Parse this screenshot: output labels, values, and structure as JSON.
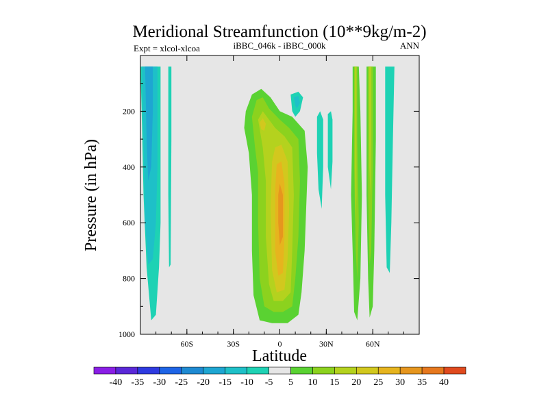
{
  "chart_data": {
    "type": "filled-contour",
    "title": "Meridional Streamfunction (10**9kg/m-2)",
    "subtitle_left": "Expt = xlcol-xlcoa",
    "subtitle_center": "iBBC_046k - iBBC_000k",
    "subtitle_right": "ANN",
    "xlabel": "Latitude",
    "ylabel": "Pressure (in hPa)",
    "xlim": [
      -90,
      90
    ],
    "ylim": [
      0,
      1000
    ],
    "x_ticks": [
      {
        "value": -60,
        "label": "60S"
      },
      {
        "value": -30,
        "label": "30S"
      },
      {
        "value": 0,
        "label": "0"
      },
      {
        "value": 30,
        "label": "30N"
      },
      {
        "value": 60,
        "label": "60N"
      }
    ],
    "y_ticks": [
      {
        "value": 200,
        "label": "200"
      },
      {
        "value": 400,
        "label": "400"
      },
      {
        "value": 600,
        "label": "600"
      },
      {
        "value": 800,
        "label": "800"
      },
      {
        "value": 1000,
        "label": "1000"
      }
    ],
    "background_color": "#e6e6e6",
    "colorbar": {
      "labels": [
        "-40",
        "-35",
        "-30",
        "-25",
        "-20",
        "-15",
        "-10",
        "-5",
        "5",
        "10",
        "15",
        "20",
        "25",
        "30",
        "35",
        "40"
      ],
      "colors": [
        "#8a1ee6",
        "#5a28d8",
        "#2e3ae0",
        "#1e64e6",
        "#1e8ad2",
        "#1ea6d2",
        "#1ec0c8",
        "#1ed2b4",
        "#e6e6e6",
        "#5ad232",
        "#8cd21e",
        "#b4d21e",
        "#d2c81e",
        "#e6b41e",
        "#e6961e",
        "#e6781e",
        "#e04a1e"
      ]
    },
    "regions": [
      {
        "name": "sh-negative-outer",
        "color": "#1ed2b4",
        "points": [
          [
            -90,
            40
          ],
          [
            -77,
            40
          ],
          [
            -77,
            600
          ],
          [
            -78,
            760
          ],
          [
            -80,
            930
          ],
          [
            -83,
            950
          ],
          [
            -86,
            760
          ],
          [
            -88,
            500
          ],
          [
            -89,
            250
          ]
        ]
      },
      {
        "name": "sh-negative-mid",
        "color": "#1ec0c8",
        "points": [
          [
            -89,
            40
          ],
          [
            -79,
            40
          ],
          [
            -79,
            400
          ],
          [
            -80,
            600
          ],
          [
            -82,
            730
          ],
          [
            -85,
            750
          ],
          [
            -87,
            600
          ],
          [
            -88,
            300
          ]
        ]
      },
      {
        "name": "sh-negative-inner",
        "color": "#1ea6d2",
        "points": [
          [
            -87,
            40
          ],
          [
            -82,
            40
          ],
          [
            -82,
            200
          ],
          [
            -83,
            400
          ],
          [
            -85,
            450
          ],
          [
            -86,
            300
          ]
        ]
      },
      {
        "name": "sh-negative-thin",
        "color": "#1ed2b4",
        "points": [
          [
            -72,
            40
          ],
          [
            -70,
            40
          ],
          [
            -70,
            300
          ],
          [
            -70.5,
            750
          ],
          [
            -71.5,
            760
          ],
          [
            -72,
            500
          ]
        ]
      },
      {
        "name": "eq-positive-5",
        "color": "#5ad232",
        "points": [
          [
            -22,
            200
          ],
          [
            -18,
            140
          ],
          [
            -12,
            120
          ],
          [
            -6,
            150
          ],
          [
            0,
            200
          ],
          [
            8,
            220
          ],
          [
            16,
            270
          ],
          [
            18,
            400
          ],
          [
            16,
            700
          ],
          [
            14,
            850
          ],
          [
            12,
            930
          ],
          [
            5,
            960
          ],
          [
            -5,
            960
          ],
          [
            -13,
            950
          ],
          [
            -17,
            860
          ],
          [
            -18,
            700
          ],
          [
            -18,
            500
          ],
          [
            -20,
            350
          ],
          [
            -23,
            260
          ]
        ]
      },
      {
        "name": "eq-positive-10",
        "color": "#8cd21e",
        "points": [
          [
            -18,
            220
          ],
          [
            -15,
            160
          ],
          [
            -11,
            150
          ],
          [
            -7,
            190
          ],
          [
            0,
            230
          ],
          [
            6,
            260
          ],
          [
            12,
            300
          ],
          [
            13,
            450
          ],
          [
            12,
            650
          ],
          [
            10,
            800
          ],
          [
            8,
            900
          ],
          [
            2,
            920
          ],
          [
            -4,
            920
          ],
          [
            -10,
            900
          ],
          [
            -13,
            800
          ],
          [
            -14,
            600
          ],
          [
            -14,
            420
          ],
          [
            -16,
            330
          ]
        ]
      },
      {
        "name": "eq-positive-15",
        "color": "#b4d21e",
        "points": [
          [
            -14,
            230
          ],
          [
            -11,
            200
          ],
          [
            -7,
            230
          ],
          [
            -3,
            260
          ],
          [
            3,
            290
          ],
          [
            8,
            330
          ],
          [
            9,
            500
          ],
          [
            8,
            700
          ],
          [
            7,
            850
          ],
          [
            2,
            880
          ],
          [
            -4,
            880
          ],
          [
            -7,
            820
          ],
          [
            -9,
            650
          ],
          [
            -9,
            450
          ],
          [
            -11,
            330
          ]
        ]
      },
      {
        "name": "eq-positive-20",
        "color": "#d2c81e",
        "points": [
          [
            -13,
            240
          ],
          [
            -11,
            225
          ],
          [
            -9,
            245
          ],
          [
            -10,
            270
          ],
          [
            -12,
            265
          ]
        ]
      },
      {
        "name": "eq-positive-20-core",
        "color": "#d2c81e",
        "points": [
          [
            -3,
            330
          ],
          [
            1,
            320
          ],
          [
            5,
            380
          ],
          [
            6,
            550
          ],
          [
            5,
            730
          ],
          [
            3,
            840
          ],
          [
            -2,
            850
          ],
          [
            -5,
            770
          ],
          [
            -6,
            550
          ],
          [
            -5,
            380
          ]
        ]
      },
      {
        "name": "eq-positive-25",
        "color": "#e6b41e",
        "points": [
          [
            -2,
            390
          ],
          [
            1,
            380
          ],
          [
            3,
            460
          ],
          [
            3,
            650
          ],
          [
            2,
            780
          ],
          [
            -1,
            790
          ],
          [
            -3,
            700
          ],
          [
            -3,
            480
          ]
        ]
      },
      {
        "name": "eq-positive-30",
        "color": "#e6961e",
        "points": [
          [
            0,
            460
          ],
          [
            2,
            500
          ],
          [
            2,
            650
          ],
          [
            0,
            680
          ],
          [
            -1,
            600
          ],
          [
            -1,
            500
          ]
        ]
      },
      {
        "name": "nh-negative-blob",
        "color": "#1ed2b4",
        "points": [
          [
            7,
            140
          ],
          [
            12,
            130
          ],
          [
            15,
            150
          ],
          [
            13,
            200
          ],
          [
            10,
            220
          ],
          [
            8,
            200
          ]
        ]
      },
      {
        "name": "nh-negative-blob-inner",
        "color": "#1ec0c8",
        "points": [
          [
            9,
            150
          ],
          [
            12,
            145
          ],
          [
            13,
            170
          ],
          [
            11,
            190
          ],
          [
            10,
            180
          ]
        ]
      },
      {
        "name": "nh-negative-streak-a",
        "color": "#1ed2b4",
        "points": [
          [
            24,
            220
          ],
          [
            26,
            200
          ],
          [
            28,
            230
          ],
          [
            28,
            400
          ],
          [
            27,
            550
          ],
          [
            25,
            480
          ],
          [
            24,
            350
          ]
        ]
      },
      {
        "name": "nh-negative-streak-b",
        "color": "#1ed2b4",
        "points": [
          [
            31,
            210
          ],
          [
            33,
            200
          ],
          [
            34,
            230
          ],
          [
            34,
            380
          ],
          [
            33,
            480
          ],
          [
            31,
            400
          ]
        ]
      },
      {
        "name": "nh-positive-outer",
        "color": "#5ad232",
        "points": [
          [
            47,
            40
          ],
          [
            51,
            40
          ],
          [
            52,
            200
          ],
          [
            53,
            500
          ],
          [
            52,
            800
          ],
          [
            50,
            950
          ],
          [
            48,
            920
          ],
          [
            47,
            700
          ],
          [
            46,
            500
          ],
          [
            47,
            200
          ]
        ]
      },
      {
        "name": "nh-positive-inner",
        "color": "#8cd21e",
        "points": [
          [
            48,
            40
          ],
          [
            50,
            40
          ],
          [
            50,
            300
          ],
          [
            51,
            600
          ],
          [
            50,
            800
          ],
          [
            49,
            700
          ],
          [
            48,
            400
          ]
        ]
      },
      {
        "name": "nh-positive-core",
        "color": "#b4d21e",
        "points": [
          [
            48.5,
            40
          ],
          [
            49.5,
            40
          ],
          [
            49.5,
            500
          ],
          [
            49,
            600
          ],
          [
            48.5,
            400
          ]
        ]
      },
      {
        "name": "nh-positive-outer-b",
        "color": "#5ad232",
        "points": [
          [
            56,
            40
          ],
          [
            62,
            40
          ],
          [
            62,
            300
          ],
          [
            61,
            700
          ],
          [
            60,
            900
          ],
          [
            58,
            940
          ],
          [
            57,
            800
          ],
          [
            56,
            500
          ]
        ]
      },
      {
        "name": "nh-positive-inner-b",
        "color": "#8cd21e",
        "points": [
          [
            57,
            40
          ],
          [
            60,
            40
          ],
          [
            60,
            400
          ],
          [
            59,
            700
          ],
          [
            58,
            750
          ],
          [
            57,
            500
          ]
        ]
      },
      {
        "name": "nh-positive-core-b",
        "color": "#b4d21e",
        "points": [
          [
            57.5,
            40
          ],
          [
            59,
            40
          ],
          [
            59,
            300
          ],
          [
            58.5,
            500
          ],
          [
            57.8,
            400
          ]
        ]
      },
      {
        "name": "nh-negative-high-lat",
        "color": "#1ed2b4",
        "points": [
          [
            68,
            40
          ],
          [
            74,
            40
          ],
          [
            73,
            300
          ],
          [
            72,
            600
          ],
          [
            71,
            780
          ],
          [
            69,
            760
          ],
          [
            68,
            500
          ]
        ]
      }
    ]
  }
}
